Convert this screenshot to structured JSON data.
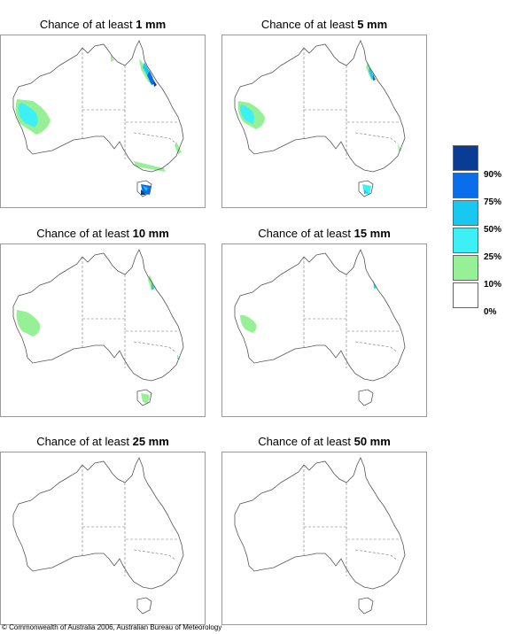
{
  "panels": [
    {
      "prefix": "Chance of at least ",
      "amount": "1 mm"
    },
    {
      "prefix": "Chance of at least ",
      "amount": "5 mm"
    },
    {
      "prefix": "Chance of at least ",
      "amount": "10 mm"
    },
    {
      "prefix": "Chance of at least ",
      "amount": "15 mm"
    },
    {
      "prefix": "Chance of at least ",
      "amount": "25 mm"
    },
    {
      "prefix": "Chance of at least ",
      "amount": "50 mm"
    }
  ],
  "legend": {
    "labels": [
      "90%",
      "75%",
      "50%",
      "25%",
      "10%",
      "0%"
    ],
    "colors": [
      "#0a3c96",
      "#0a6eea",
      "#19c8f0",
      "#3cf0f5",
      "#96f096",
      "#ffffff"
    ]
  },
  "copyright": "© Commonwealth of Australia 2006, Australian Bureau of Meteorology"
}
